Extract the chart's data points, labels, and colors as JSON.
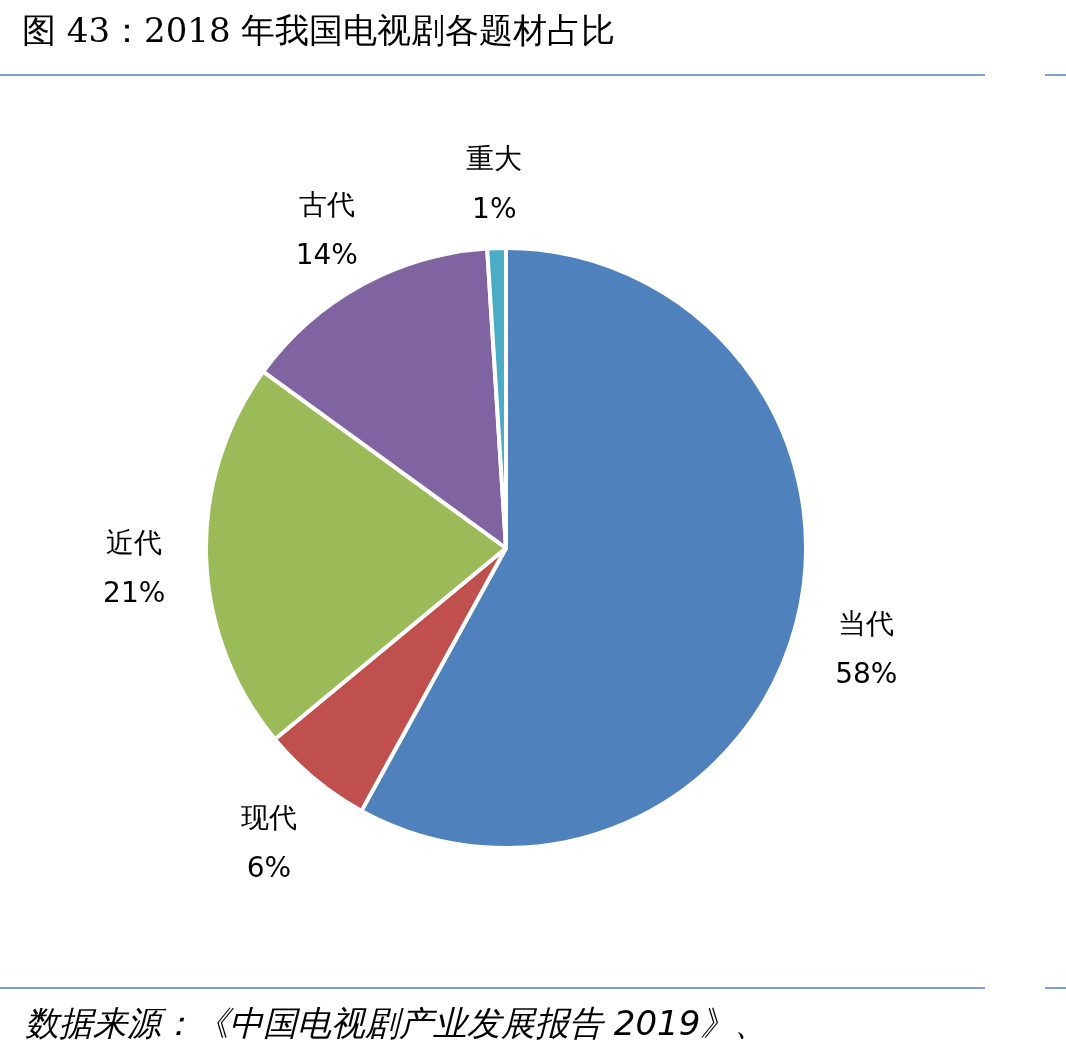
{
  "chart_data": {
    "type": "pie",
    "title": "图 43：2018 年我国电视剧各题材占比",
    "categories": [
      "当代",
      "现代",
      "近代",
      "古代",
      "重大"
    ],
    "values": [
      58,
      6,
      21,
      14,
      1
    ],
    "colors": [
      "#4f81bd",
      "#c0504d",
      "#9bbb59",
      "#8064a2",
      "#4bacc6"
    ],
    "value_labels": [
      "58%",
      "6%",
      "21%",
      "14%",
      "1%"
    ],
    "annotations": [
      "数据来源：《中国电视剧产业发展报告 2019》、"
    ]
  }
}
